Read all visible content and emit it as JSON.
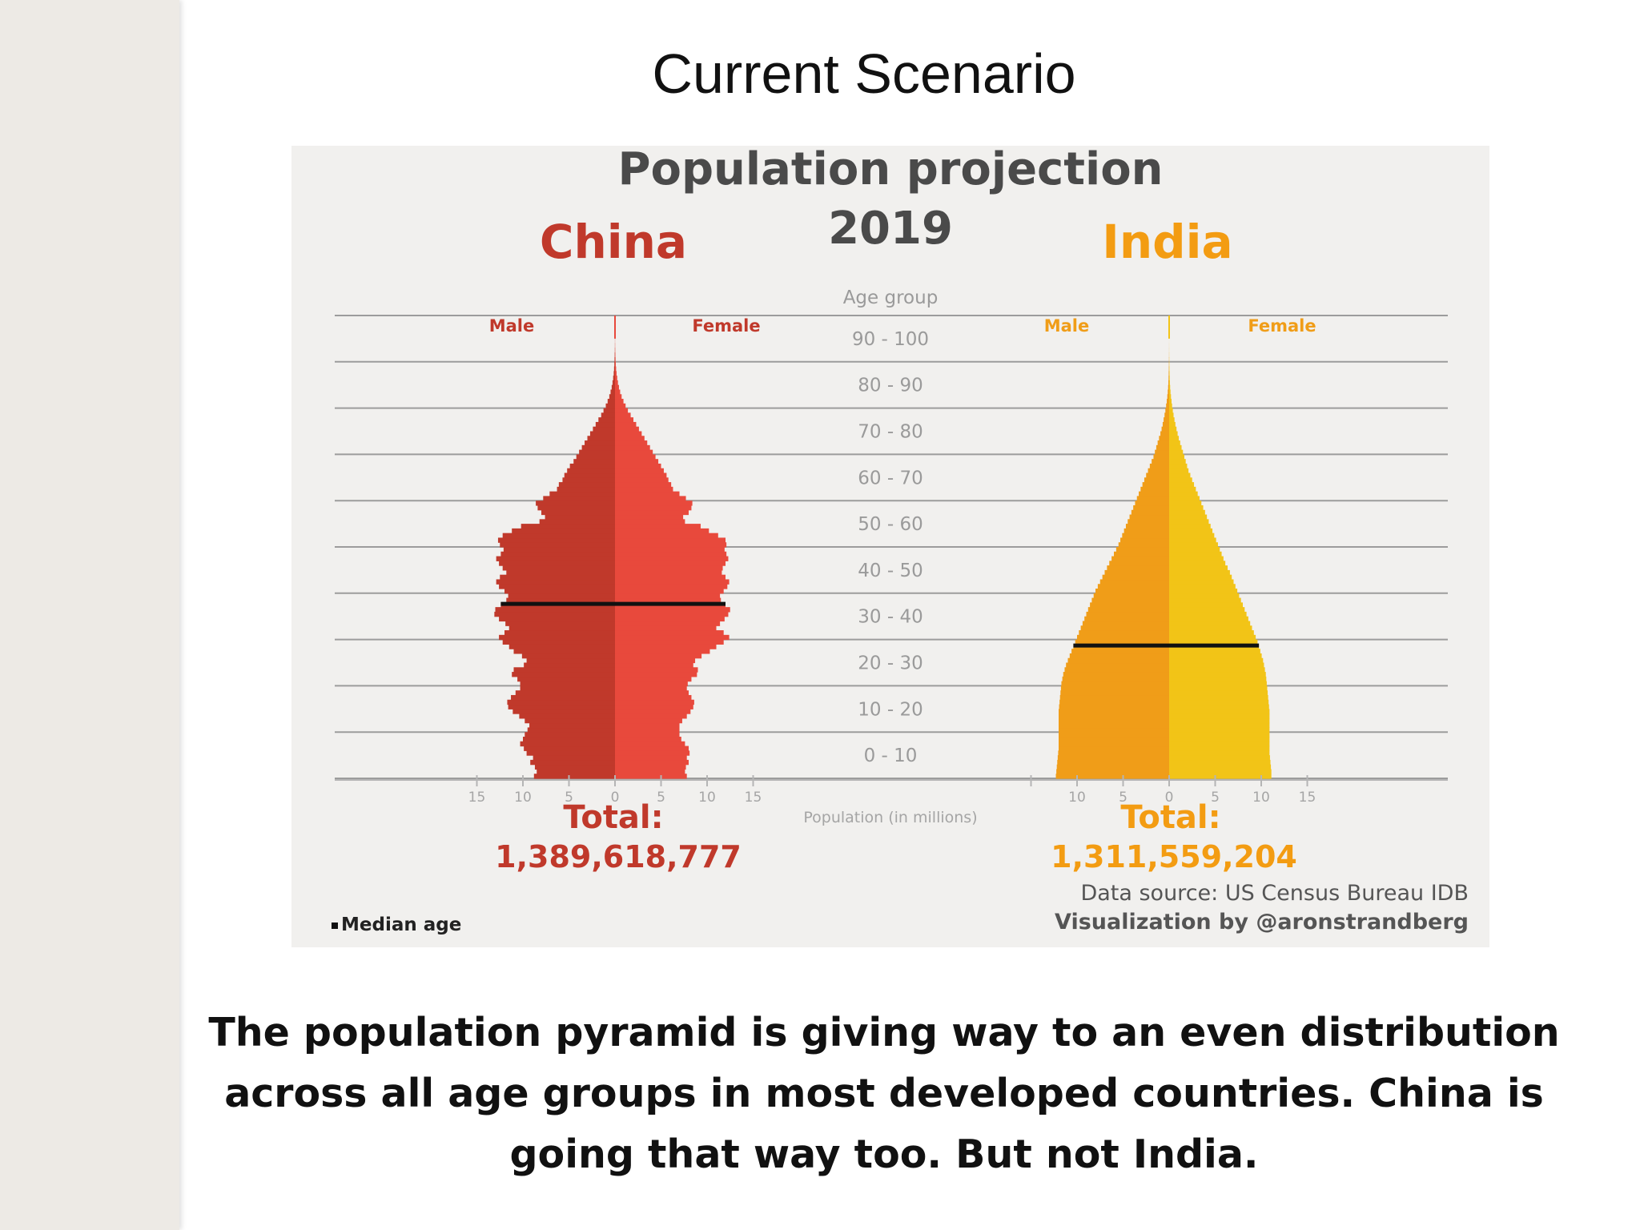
{
  "slide": {
    "title": "Current Scenario",
    "caption": "The population pyramid is giving way to an even distribution across all age groups in  most developed countries. China is going that way too. But not India."
  },
  "colors": {
    "china_male": "#c0392b",
    "china_female": "#e8493c",
    "china_title": "#c0392b",
    "india_male": "#f09d18",
    "india_female": "#f2c417",
    "india_title": "#f39c12",
    "median": "#111111"
  },
  "chart_data": {
    "type": "bar",
    "title": "Population projection",
    "subtitle": "2019",
    "center_label": "Age group",
    "x_axis_label": "Population (in millions)",
    "age_groups": [
      "0 - 10",
      "10 - 20",
      "20 - 30",
      "30 - 40",
      "40 - 50",
      "50 - 60",
      "60 - 70",
      "70 - 80",
      "80 - 90",
      "90 - 100"
    ],
    "x_ticks": [
      "15",
      "10",
      "5",
      "0",
      "5",
      "10",
      "15"
    ],
    "xlim": [
      0,
      15
    ],
    "median_label": "Median age",
    "source": "Data source: US Census Bureau IDB",
    "credit": "Visualization by @aronstrandberg",
    "panels": [
      {
        "name": "China",
        "male_label": "Male",
        "female_label": "Female",
        "total_label": "Total:",
        "total_value": "1,389,618,777",
        "median_age": 37.7,
        "series": [
          {
            "name": "Male",
            "values": [
              8.8,
              8.5,
              8.7,
              9.2,
              8.9,
              9.6,
              9.9,
              10.3,
              10.0,
              9.8,
              9.5,
              9.3,
              9.8,
              10.4,
              11.1,
              11.6,
              11.7,
              11.3,
              10.8,
              10.3,
              10.3,
              10.6,
              11.2,
              11.0,
              9.9,
              9.6,
              10.1,
              11.0,
              11.5,
              12.2,
              12.6,
              12.0,
              11.5,
              11.9,
              12.6,
              13.1,
              13.0,
              12.4,
              11.8,
              11.6,
              12.0,
              12.6,
              12.9,
              12.5,
              11.8,
              12.2,
              12.6,
              12.9,
              12.4,
              12.1,
              12.5,
              12.7,
              12.2,
              11.2,
              10.2,
              8.2,
              7.6,
              8.0,
              8.4,
              8.6,
              7.8,
              7.1,
              6.3,
              6.1,
              5.7,
              5.5,
              5.2,
              4.9,
              4.5,
              4.2,
              3.9,
              3.6,
              3.3,
              3.0,
              2.7,
              2.4,
              2.1,
              1.8,
              1.5,
              1.25,
              1.0,
              0.8,
              0.62,
              0.48,
              0.36,
              0.27,
              0.2,
              0.14,
              0.1,
              0.07,
              0.05,
              0.035,
              0.02,
              0.012,
              0.008,
              0.005,
              0.003,
              0.002,
              0.001,
              0.0
            ]
          },
          {
            "name": "Female",
            "values": [
              7.8,
              7.6,
              7.7,
              8.0,
              7.8,
              8.1,
              8.0,
              7.6,
              7.2,
              7.0,
              7.0,
              7.0,
              7.3,
              7.8,
              8.2,
              8.5,
              8.6,
              8.3,
              8.0,
              7.8,
              7.9,
              8.3,
              8.9,
              9.0,
              8.5,
              8.7,
              9.4,
              10.3,
              11.0,
              11.8,
              12.4,
              11.8,
              11.0,
              11.4,
              11.9,
              12.3,
              12.5,
              12.0,
              11.5,
              11.4,
              11.8,
              12.2,
              12.4,
              12.0,
              11.6,
              11.7,
              12.0,
              12.3,
              12.1,
              11.9,
              12.1,
              12.0,
              11.2,
              10.2,
              9.3,
              7.6,
              7.4,
              8.0,
              8.3,
              8.4,
              7.7,
              7.0,
              6.3,
              6.1,
              5.8,
              5.6,
              5.3,
              5.0,
              4.7,
              4.4,
              4.1,
              3.8,
              3.5,
              3.2,
              2.9,
              2.6,
              2.3,
              2.0,
              1.7,
              1.4,
              1.15,
              0.92,
              0.72,
              0.56,
              0.43,
              0.32,
              0.24,
              0.17,
              0.12,
              0.085,
              0.06,
              0.042,
              0.028,
              0.018,
              0.011,
              0.007,
              0.004,
              0.002,
              0.001,
              0.0
            ]
          }
        ]
      },
      {
        "name": "India",
        "male_label": "Male",
        "female_label": "Female",
        "total_label": "Total:",
        "total_value": "1,311,559,204",
        "median_age": 28.7,
        "series": [
          {
            "name": "Male",
            "values": [
              12.3,
              12.25,
              12.2,
              12.15,
              12.1,
              12.05,
              12.0,
              12.0,
              12.0,
              12.0,
              12.0,
              12.0,
              12.0,
              12.0,
              12.0,
              11.95,
              11.9,
              11.85,
              11.8,
              11.75,
              11.7,
              11.6,
              11.5,
              11.35,
              11.2,
              11.0,
              10.8,
              10.6,
              10.4,
              10.2,
              10.0,
              9.8,
              9.6,
              9.4,
              9.2,
              9.0,
              8.8,
              8.6,
              8.4,
              8.2,
              8.0,
              7.75,
              7.5,
              7.25,
              7.0,
              6.75,
              6.5,
              6.25,
              6.0,
              5.75,
              5.5,
              5.3,
              5.1,
              4.9,
              4.7,
              4.5,
              4.3,
              4.1,
              3.9,
              3.7,
              3.5,
              3.3,
              3.1,
              2.9,
              2.7,
              2.5,
              2.3,
              2.1,
              1.9,
              1.7,
              1.55,
              1.4,
              1.25,
              1.1,
              0.95,
              0.82,
              0.7,
              0.6,
              0.5,
              0.41,
              0.33,
              0.26,
              0.2,
              0.15,
              0.11,
              0.08,
              0.06,
              0.045,
              0.032,
              0.022,
              0.015,
              0.01,
              0.006,
              0.004,
              0.002,
              0.001,
              0.0,
              0.0,
              0.0,
              0.0
            ]
          },
          {
            "name": "Female",
            "values": [
              11.1,
              11.1,
              11.05,
              11.0,
              10.95,
              10.9,
              10.9,
              10.9,
              10.9,
              10.9,
              10.9,
              10.9,
              10.9,
              10.9,
              10.9,
              10.85,
              10.8,
              10.75,
              10.7,
              10.65,
              10.6,
              10.55,
              10.5,
              10.4,
              10.3,
              10.2,
              10.05,
              9.9,
              9.75,
              9.6,
              9.4,
              9.2,
              9.0,
              8.8,
              8.6,
              8.4,
              8.2,
              8.0,
              7.8,
              7.6,
              7.4,
              7.2,
              7.0,
              6.8,
              6.6,
              6.35,
              6.1,
              5.9,
              5.7,
              5.5,
              5.3,
              5.1,
              4.9,
              4.7,
              4.5,
              4.3,
              4.1,
              3.9,
              3.7,
              3.5,
              3.3,
              3.1,
              2.9,
              2.7,
              2.5,
              2.3,
              2.1,
              1.95,
              1.8,
              1.65,
              1.5,
              1.35,
              1.2,
              1.05,
              0.92,
              0.8,
              0.68,
              0.58,
              0.48,
              0.4,
              0.32,
              0.26,
              0.2,
              0.15,
              0.11,
              0.08,
              0.06,
              0.045,
              0.032,
              0.022,
              0.015,
              0.01,
              0.006,
              0.004,
              0.002,
              0.001,
              0.0,
              0.0,
              0.0,
              0.0
            ]
          }
        ]
      }
    ]
  }
}
